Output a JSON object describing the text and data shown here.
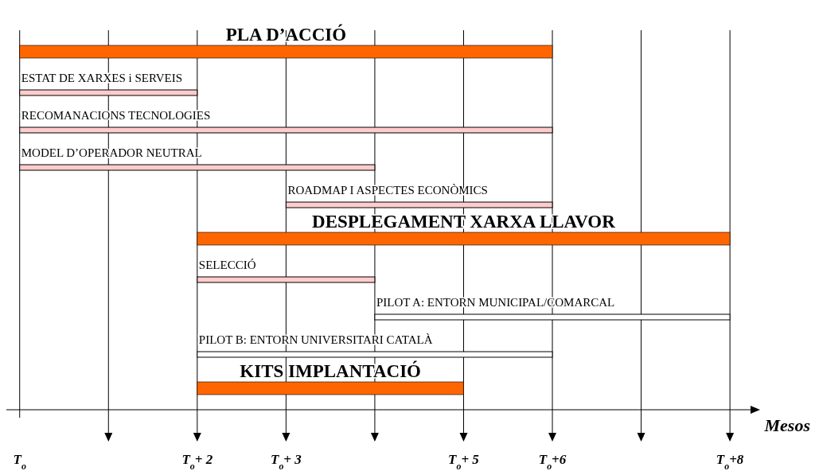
{
  "chart_data": {
    "type": "bar",
    "orientation": "horizontal",
    "xlabel": "Mesos",
    "categories": [
      "PLA D’ACCIÓ",
      "ESTAT DE XARXES i SERVEIS",
      "RECOMANACIONS TECNOLOGIES",
      "MODEL D’OPERADOR NEUTRAL",
      "ROADMAP I ASPECTES ECONÒMICS",
      "DESPLEGAMENT XARXA LLAVOR",
      "SELECCIÓ",
      "PILOT A: ENTORN MUNICIPAL/COMARCAL",
      "PILOT B: ENTORN UNIVERSITARI CATALÀ",
      "KITS IMPLANTACIÓ"
    ],
    "series": [
      {
        "color": "#ff6600",
        "base": [
          0,
          null,
          null,
          null,
          null,
          2,
          null,
          null,
          null,
          2
        ],
        "values": [
          6,
          null,
          null,
          null,
          null,
          6,
          null,
          null,
          null,
          3
        ]
      },
      {
        "color": "#ffcccc",
        "base": [
          null,
          0,
          0,
          0,
          3,
          null,
          2,
          null,
          null,
          null
        ],
        "values": [
          null,
          2,
          6,
          4,
          3,
          null,
          2,
          null,
          null,
          null
        ]
      },
      {
        "color": "#ffffff",
        "base": [
          null,
          null,
          null,
          null,
          null,
          null,
          null,
          4,
          2,
          null
        ],
        "values": [
          null,
          null,
          null,
          null,
          null,
          null,
          null,
          4,
          4,
          null
        ]
      }
    ],
    "xlim": [
      -0.15,
      8.25
    ],
    "xticks": [
      {
        "value": 0,
        "label": "T$_{o}$"
      },
      {
        "value": 1,
        "label": null
      },
      {
        "value": 2,
        "label": "T$_{o}$+ 2"
      },
      {
        "value": 3,
        "label": "T$_{o}$+ 3"
      },
      {
        "value": 4,
        "label": null
      },
      {
        "value": 5,
        "label": "T$_{o}$+ 5"
      },
      {
        "value": 6,
        "label": "T$_{o}$+6"
      },
      {
        "value": 7,
        "label": null
      },
      {
        "value": 8,
        "label": "T$_{o}$+8"
      }
    ],
    "grid": "x"
  }
}
